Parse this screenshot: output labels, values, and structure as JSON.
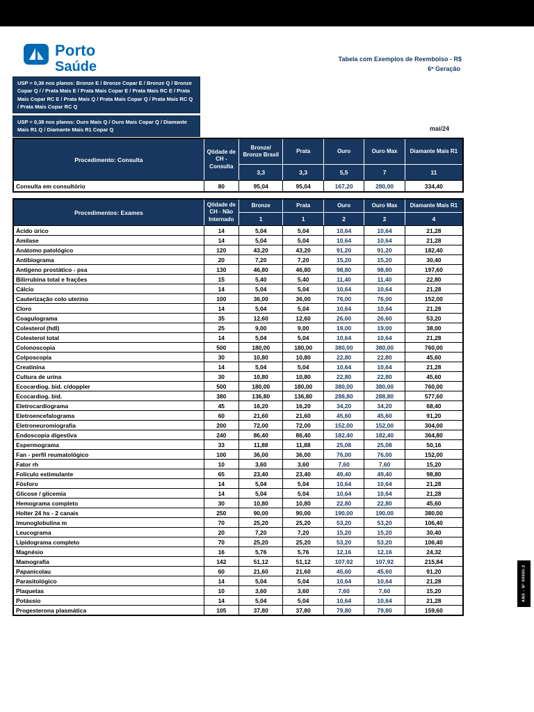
{
  "brand": {
    "line1": "Porto",
    "line2": "Saúde"
  },
  "header": {
    "title_line1": "Tabela com Exemplos de Reembolso - R$",
    "title_line2": "6ª Geração",
    "date": "mai/24",
    "side_label": "ANS - Nº 00000-2"
  },
  "notes": {
    "usp_1": "USP = 0,36 nos planos: Bronze E / Bronze Copar E / Bronze Q / Bronze Copar Q / / Prata Mais E / Prata Mais Copar E / Prata Mais RC E / Prata Mais Copar RC E / Prata Mais Q / Prata Mais Copar Q / Prata Mais RC Q / Prata Mais Copar RC Q",
    "usp_2": "USP = 0,38 nos planos: Ouro Mais Q / Ouro Mais Copar Q / Diamante Mais R1 Q / Diamante Mais R1 Copar Q"
  },
  "consulta_table": {
    "header_col1": "Procedimento: Consulta",
    "header_col2": "Qtidade de CH - Consulta",
    "plan_columns": [
      "Bronze/ Bronze Brasil",
      "Prata",
      "Ouro",
      "Ouro Max",
      "Diamante Mais R1"
    ],
    "multipliers": [
      "3,3",
      "3,3",
      "5,5",
      "7",
      "11"
    ],
    "rows": [
      {
        "name": "Consulta em consultório",
        "ch": "80",
        "values": [
          "95,04",
          "95,04",
          "167,20",
          "280,00",
          "334,40"
        ]
      }
    ]
  },
  "exames_table": {
    "header_col1": "Procedimentos: Exames",
    "header_col2": "Qtidade de CH - Não Internado",
    "plan_columns": [
      "Bronze",
      "Prata",
      "Ouro",
      "Ouro Max",
      "Diamante Mais R1"
    ],
    "multipliers": [
      "1",
      "1",
      "2",
      "2",
      "4"
    ],
    "rows": [
      {
        "name": "Ácido úrico",
        "ch": "14",
        "values": [
          "5,04",
          "5,04",
          "10,64",
          "10,64",
          "21,28"
        ]
      },
      {
        "name": "Amilase",
        "ch": "14",
        "values": [
          "5,04",
          "5,04",
          "10,64",
          "10,64",
          "21,28"
        ]
      },
      {
        "name": "Anátomo patológico",
        "ch": "120",
        "values": [
          "43,20",
          "43,20",
          "91,20",
          "91,20",
          "182,40"
        ]
      },
      {
        "name": "Antibiograma",
        "ch": "20",
        "values": [
          "7,20",
          "7,20",
          "15,20",
          "15,20",
          "30,40"
        ]
      },
      {
        "name": "Antígeno prostático - psa",
        "ch": "130",
        "values": [
          "46,80",
          "46,80",
          "98,80",
          "98,80",
          "197,60"
        ]
      },
      {
        "name": "Bilirrubina total e frações",
        "ch": "15",
        "values": [
          "5,40",
          "5,40",
          "11,40",
          "11,40",
          "22,80"
        ]
      },
      {
        "name": "Cálcio",
        "ch": "14",
        "values": [
          "5,04",
          "5,04",
          "10,64",
          "10,64",
          "21,28"
        ]
      },
      {
        "name": "Cauterização colo uterino",
        "ch": "100",
        "values": [
          "36,00",
          "36,00",
          "76,00",
          "76,00",
          "152,00"
        ]
      },
      {
        "name": "Cloro",
        "ch": "14",
        "values": [
          "5,04",
          "5,04",
          "10,64",
          "10,64",
          "21,28"
        ]
      },
      {
        "name": "Coagulograma",
        "ch": "35",
        "values": [
          "12,60",
          "12,60",
          "26,60",
          "26,60",
          "53,20"
        ]
      },
      {
        "name": "Colesterol (hdl)",
        "ch": "25",
        "values": [
          "9,00",
          "9,00",
          "19,00",
          "19,00",
          "38,00"
        ]
      },
      {
        "name": "Colesterol total",
        "ch": "14",
        "values": [
          "5,04",
          "5,04",
          "10,64",
          "10,64",
          "21,28"
        ]
      },
      {
        "name": "Colonoscopia",
        "ch": "500",
        "values": [
          "180,00",
          "180,00",
          "380,00",
          "380,00",
          "760,00"
        ]
      },
      {
        "name": "Colposcopia",
        "ch": "30",
        "values": [
          "10,80",
          "10,80",
          "22,80",
          "22,80",
          "45,60"
        ]
      },
      {
        "name": "Creatinina",
        "ch": "14",
        "values": [
          "5,04",
          "5,04",
          "10,64",
          "10,64",
          "21,28"
        ]
      },
      {
        "name": "Cultura de urina",
        "ch": "30",
        "values": [
          "10,80",
          "10,80",
          "22,80",
          "22,80",
          "45,60"
        ]
      },
      {
        "name": "Ecocardiog. bid. c/doppler",
        "ch": "500",
        "values": [
          "180,00",
          "180,00",
          "380,00",
          "380,00",
          "760,00"
        ]
      },
      {
        "name": "Ecocardiog. bid.",
        "ch": "380",
        "values": [
          "136,80",
          "136,80",
          "288,80",
          "288,80",
          "577,60"
        ]
      },
      {
        "name": "Eletrocardiograma",
        "ch": "45",
        "values": [
          "16,20",
          "16,20",
          "34,20",
          "34,20",
          "68,40"
        ]
      },
      {
        "name": "Eletroencefalograma",
        "ch": "60",
        "values": [
          "21,60",
          "21,60",
          "45,60",
          "45,60",
          "91,20"
        ]
      },
      {
        "name": "Eletroneuromiografia",
        "ch": "200",
        "values": [
          "72,00",
          "72,00",
          "152,00",
          "152,00",
          "304,00"
        ]
      },
      {
        "name": "Endoscopia digestiva",
        "ch": "240",
        "values": [
          "86,40",
          "86,40",
          "182,40",
          "182,40",
          "364,80"
        ]
      },
      {
        "name": "Espermograma",
        "ch": "33",
        "values": [
          "11,88",
          "11,88",
          "25,08",
          "25,08",
          "50,16"
        ]
      },
      {
        "name": "Fan - perfil reumatológico",
        "ch": "100",
        "values": [
          "36,00",
          "36,00",
          "76,00",
          "76,00",
          "152,00"
        ]
      },
      {
        "name": "Fator rh",
        "ch": "10",
        "values": [
          "3,60",
          "3,60",
          "7,60",
          "7,60",
          "15,20"
        ]
      },
      {
        "name": "Folículo estimulante",
        "ch": "65",
        "values": [
          "23,40",
          "23,40",
          "49,40",
          "49,40",
          "98,80"
        ]
      },
      {
        "name": "Fósforo",
        "ch": "14",
        "values": [
          "5,04",
          "5,04",
          "10,64",
          "10,64",
          "21,28"
        ]
      },
      {
        "name": "Glicose / glicemia",
        "ch": "14",
        "values": [
          "5,04",
          "5,04",
          "10,64",
          "10,64",
          "21,28"
        ]
      },
      {
        "name": "Hemograma completo",
        "ch": "30",
        "values": [
          "10,80",
          "10,80",
          "22,80",
          "22,80",
          "45,60"
        ]
      },
      {
        "name": "Holter 24 hs - 2 canais",
        "ch": "250",
        "values": [
          "90,00",
          "90,00",
          "190,00",
          "190,00",
          "380,00"
        ]
      },
      {
        "name": "Imunoglobulina m",
        "ch": "70",
        "values": [
          "25,20",
          "25,20",
          "53,20",
          "53,20",
          "106,40"
        ]
      },
      {
        "name": "Leucograma",
        "ch": "20",
        "values": [
          "7,20",
          "7,20",
          "15,20",
          "15,20",
          "30,40"
        ]
      },
      {
        "name": "Lipidograma completo",
        "ch": "70",
        "values": [
          "25,20",
          "25,20",
          "53,20",
          "53,20",
          "106,40"
        ]
      },
      {
        "name": "Magnésio",
        "ch": "16",
        "values": [
          "5,76",
          "5,76",
          "12,16",
          "12,16",
          "24,32"
        ]
      },
      {
        "name": "Mamografia",
        "ch": "142",
        "values": [
          "51,12",
          "51,12",
          "107,92",
          "107,92",
          "215,84"
        ]
      },
      {
        "name": "Papanicolau",
        "ch": "60",
        "values": [
          "21,60",
          "21,60",
          "45,60",
          "45,60",
          "91,20"
        ]
      },
      {
        "name": "Parasitológico",
        "ch": "14",
        "values": [
          "5,04",
          "5,04",
          "10,64",
          "10,64",
          "21,28"
        ]
      },
      {
        "name": "Plaquetas",
        "ch": "10",
        "values": [
          "3,60",
          "3,60",
          "7,60",
          "7,60",
          "15,20"
        ]
      },
      {
        "name": "Potássio",
        "ch": "14",
        "values": [
          "5,04",
          "5,04",
          "10,64",
          "10,64",
          "21,28"
        ]
      },
      {
        "name": "Progesterona plasmática",
        "ch": "105",
        "values": [
          "37,80",
          "37,80",
          "79,80",
          "79,80",
          "159,60"
        ]
      }
    ]
  }
}
